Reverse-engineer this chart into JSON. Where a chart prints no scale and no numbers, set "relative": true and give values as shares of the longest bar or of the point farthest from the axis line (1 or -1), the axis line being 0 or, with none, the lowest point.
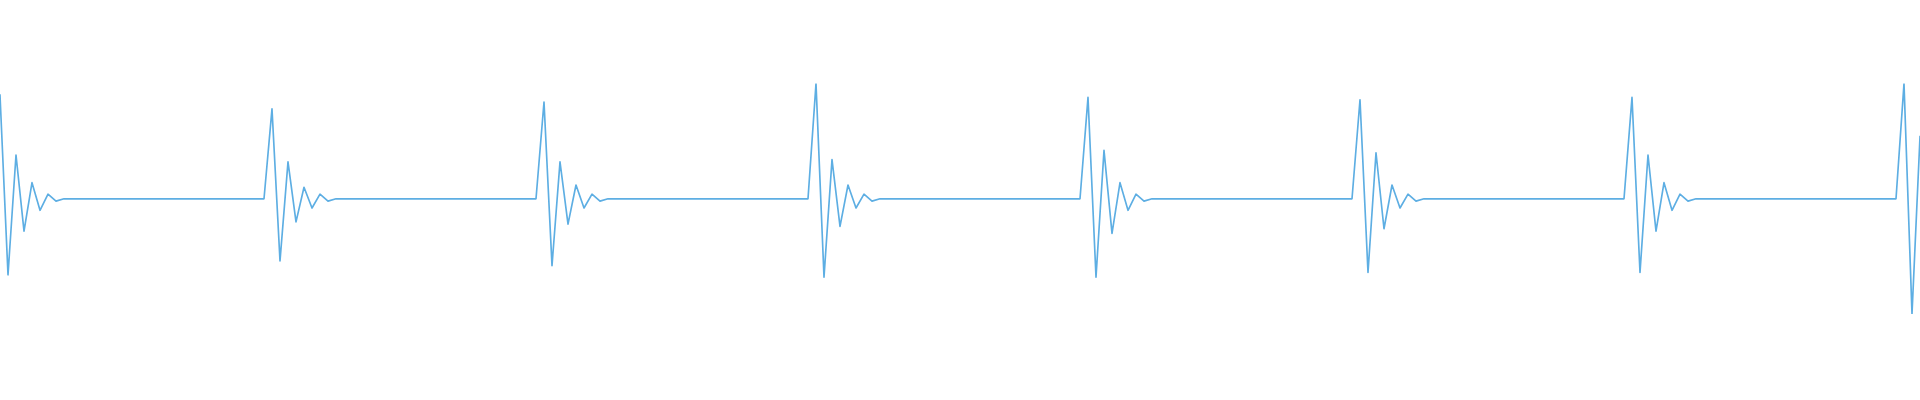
{
  "chart_data": {
    "type": "line",
    "relative": true,
    "categories": [
      null,
      null,
      null,
      null,
      null,
      null,
      null,
      null,
      null,
      null,
      null,
      null,
      null,
      null,
      null,
      null,
      null,
      null,
      null,
      null,
      null,
      null,
      null,
      null,
      null,
      null,
      null,
      null,
      null,
      null,
      null,
      null,
      null,
      null,
      null,
      null,
      null,
      null,
      null,
      null,
      null,
      null,
      null,
      null,
      null,
      null,
      null,
      null,
      null,
      null,
      null,
      null,
      null,
      null,
      null,
      null,
      null,
      null,
      null,
      null,
      null,
      null,
      null,
      null,
      null,
      null,
      null,
      null,
      null,
      null,
      null,
      null,
      null,
      null,
      null,
      null,
      null,
      null,
      null,
      null,
      null,
      null,
      null,
      null,
      null,
      null,
      null,
      null,
      null,
      null,
      null,
      null,
      null,
      null,
      null,
      null,
      null,
      null,
      null,
      null,
      null,
      null,
      null,
      null,
      null,
      null,
      null,
      null,
      null,
      null,
      null,
      null,
      null,
      null,
      null,
      null,
      null,
      null,
      null,
      null,
      null,
      null,
      null,
      null,
      null,
      null,
      null,
      null,
      null,
      null,
      null,
      null,
      null,
      null,
      null,
      null,
      null,
      null,
      null,
      null,
      null,
      null,
      null,
      null,
      null,
      null,
      null,
      null,
      null,
      null,
      null,
      null,
      null,
      null,
      null,
      null,
      null,
      null,
      null,
      null,
      null,
      null,
      null,
      null,
      null,
      null,
      null,
      null,
      null,
      null,
      null,
      null,
      null,
      null,
      null,
      null,
      null,
      null,
      null,
      null,
      null,
      null,
      null,
      null,
      null,
      null,
      null,
      null,
      null,
      null,
      null,
      null,
      null,
      null,
      null,
      null,
      null,
      null,
      null,
      null,
      null,
      null,
      null,
      null,
      null,
      null,
      null,
      null,
      null,
      null,
      null,
      null,
      null,
      null,
      null,
      null,
      null,
      null,
      null,
      null,
      null,
      null,
      null,
      null,
      null,
      null,
      null,
      null,
      null,
      null,
      null,
      null,
      null,
      null,
      null,
      null,
      null,
      null,
      null,
      null,
      null
    ],
    "series": [
      {
        "color": "#5daee3",
        "values": [
          0.95,
          0.17,
          0.69,
          0.36,
          0.57,
          0.45,
          0.52,
          0.49,
          0.5,
          0.5,
          0.5,
          0.5,
          0.5,
          0.5,
          0.5,
          0.5,
          0.5,
          0.5,
          0.5,
          0.5,
          0.5,
          0.5,
          0.5,
          0.5,
          0.5,
          0.5,
          0.5,
          0.5,
          0.5,
          0.5,
          0.5,
          0.5,
          0.5,
          0.5,
          0.89,
          0.23,
          0.66,
          0.4,
          0.55,
          0.46,
          0.52,
          0.49,
          0.5,
          0.5,
          0.5,
          0.5,
          0.5,
          0.5,
          0.5,
          0.5,
          0.5,
          0.5,
          0.5,
          0.5,
          0.5,
          0.5,
          0.5,
          0.5,
          0.5,
          0.5,
          0.5,
          0.5,
          0.5,
          0.5,
          0.5,
          0.5,
          0.5,
          0.5,
          0.92,
          0.21,
          0.66,
          0.39,
          0.56,
          0.46,
          0.52,
          0.49,
          0.5,
          0.5,
          0.5,
          0.5,
          0.5,
          0.5,
          0.5,
          0.5,
          0.5,
          0.5,
          0.5,
          0.5,
          0.5,
          0.5,
          0.5,
          0.5,
          0.5,
          0.5,
          0.5,
          0.5,
          0.5,
          0.5,
          0.5,
          0.5,
          0.5,
          0.5,
          1.0,
          0.16,
          0.67,
          0.38,
          0.56,
          0.46,
          0.52,
          0.49,
          0.5,
          0.5,
          0.5,
          0.5,
          0.5,
          0.5,
          0.5,
          0.5,
          0.5,
          0.5,
          0.5,
          0.5,
          0.5,
          0.5,
          0.5,
          0.5,
          0.5,
          0.5,
          0.5,
          0.5,
          0.5,
          0.5,
          0.5,
          0.5,
          0.5,
          0.5,
          0.94,
          0.16,
          0.71,
          0.35,
          0.57,
          0.45,
          0.52,
          0.49,
          0.5,
          0.5,
          0.5,
          0.5,
          0.5,
          0.5,
          0.5,
          0.5,
          0.5,
          0.5,
          0.5,
          0.5,
          0.5,
          0.5,
          0.5,
          0.5,
          0.5,
          0.5,
          0.5,
          0.5,
          0.5,
          0.5,
          0.5,
          0.5,
          0.5,
          0.5,
          0.93,
          0.18,
          0.7,
          0.37,
          0.56,
          0.46,
          0.52,
          0.49,
          0.5,
          0.5,
          0.5,
          0.5,
          0.5,
          0.5,
          0.5,
          0.5,
          0.5,
          0.5,
          0.5,
          0.5,
          0.5,
          0.5,
          0.5,
          0.5,
          0.5,
          0.5,
          0.5,
          0.5,
          0.5,
          0.5,
          0.5,
          0.5,
          0.5,
          0.5,
          0.94,
          0.18,
          0.69,
          0.36,
          0.57,
          0.45,
          0.52,
          0.49,
          0.5,
          0.5,
          0.5,
          0.5,
          0.5,
          0.5,
          0.5,
          0.5,
          0.5,
          0.5,
          0.5,
          0.5,
          0.5,
          0.5,
          0.5,
          0.5,
          0.5,
          0.5,
          0.5,
          0.5,
          0.5,
          0.5,
          0.5,
          0.5,
          0.5,
          0.5,
          1.0,
          0.0,
          0.77
        ]
      }
    ]
  }
}
